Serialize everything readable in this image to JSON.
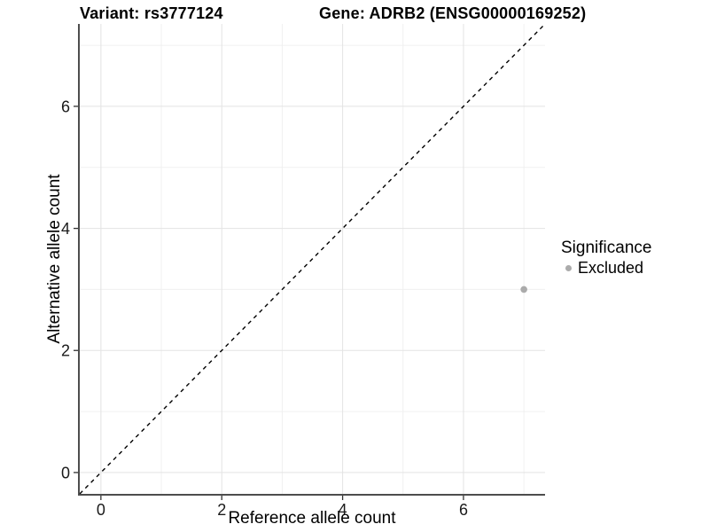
{
  "header": {
    "variant_title": "Variant: rs3777124",
    "gene_title": "Gene: ADRB2 (ENSG00000169252)"
  },
  "chart_data": {
    "type": "scatter",
    "title": "Variant: rs3777124   Gene: ADRB2 (ENSG00000169252)",
    "xlabel": "Reference allele count",
    "ylabel": "Alternative allele count",
    "xlim": [
      -0.35,
      7.35
    ],
    "ylim": [
      -0.35,
      7.35
    ],
    "x_ticks": [
      0,
      2,
      4,
      6
    ],
    "y_ticks": [
      0,
      2,
      4,
      6
    ],
    "x_minor_ticks": [
      1,
      3,
      5,
      7
    ],
    "y_minor_ticks": [
      1,
      3,
      5,
      7
    ],
    "grid": true,
    "series": [
      {
        "name": "Excluded",
        "marker": "circle",
        "color": "#ababab",
        "points": [
          {
            "x": 7,
            "y": 3
          }
        ]
      }
    ],
    "reference_line": {
      "kind": "identity",
      "equation": "y = x",
      "style": "dashed",
      "color": "#000000"
    },
    "legend": {
      "title": "Significance",
      "position": "right",
      "entries": [
        {
          "label": "Excluded",
          "color": "#ababab",
          "marker": "dot"
        }
      ]
    }
  },
  "colors": {
    "background": "#ffffff",
    "grid_major": "#e3e3e3",
    "grid_minor": "#f0f0f0",
    "axis_line": "#4d4d4d",
    "tick_mark": "#333333",
    "tick_label": "#1a1a1a",
    "title_text": "#000000"
  }
}
